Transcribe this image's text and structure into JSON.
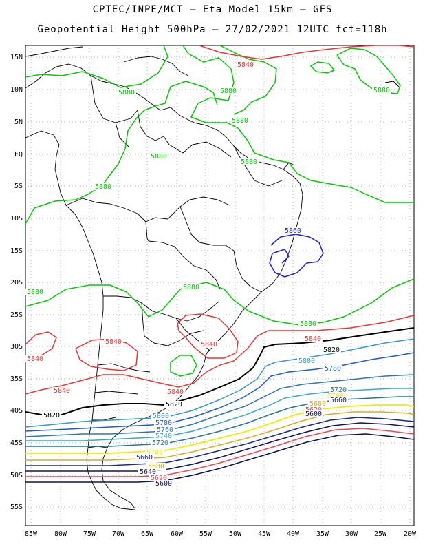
{
  "header": {
    "line1": "CPTEC/INPE/MCT –  Eta Model 15km – GFS",
    "line2": "Geopotential Height 500hPa – 27/02/2021 12UTC fct=118h"
  },
  "axes": {
    "lat_labels": [
      "15N",
      "10N",
      "5N",
      "EQ",
      "5S",
      "10S",
      "15S",
      "20S",
      "25S",
      "30S",
      "35S",
      "40S",
      "45S",
      "50S",
      "55S"
    ],
    "lon_labels": [
      "85W",
      "80W",
      "75W",
      "70W",
      "65W",
      "60W",
      "55W",
      "50W",
      "45W",
      "40W",
      "35W",
      "30W",
      "25W",
      "20W"
    ],
    "lat_range": [
      -58,
      17
    ],
    "lon_range": [
      -86,
      -20
    ]
  },
  "contours": {
    "levels": [
      {
        "value": "5880",
        "color": "#00cc00"
      },
      {
        "value": "5860",
        "color": "#1a1aee"
      },
      {
        "value": "5840",
        "color": "#ee3333"
      },
      {
        "value": "5820",
        "color": "#000000"
      },
      {
        "value": "5800",
        "color": "#3399cc"
      },
      {
        "value": "5780",
        "color": "#1a5ad6"
      },
      {
        "value": "5760",
        "color": "#2a76b8"
      },
      {
        "value": "5740",
        "color": "#33aacc"
      },
      {
        "value": "5720",
        "color": "#227799"
      },
      {
        "value": "5700",
        "color": "#eeee00"
      },
      {
        "value": "5680",
        "color": "#ddaa22"
      },
      {
        "value": "5660",
        "color": "#1a2a8a"
      },
      {
        "value": "5640",
        "color": "#111166"
      },
      {
        "value": "5620",
        "color": "#ee4455"
      },
      {
        "value": "5600",
        "color": "#101050"
      }
    ],
    "labels": [
      {
        "text": "5880",
        "color": "#00cc00"
      },
      {
        "text": "5880",
        "color": "#00cc00"
      },
      {
        "text": "5880",
        "color": "#00cc00"
      },
      {
        "text": "5880",
        "color": "#00cc00"
      },
      {
        "text": "5880",
        "color": "#00cc00"
      },
      {
        "text": "5880",
        "color": "#00cc00"
      },
      {
        "text": "5880",
        "color": "#00cc00"
      },
      {
        "text": "5880",
        "color": "#00cc00"
      },
      {
        "text": "5880",
        "color": "#00cc00"
      },
      {
        "text": "5880",
        "color": "#00cc00"
      },
      {
        "text": "5860",
        "color": "#1a1aee"
      },
      {
        "text": "5840",
        "color": "#ee3333"
      },
      {
        "text": "5840",
        "color": "#ee3333"
      },
      {
        "text": "5840",
        "color": "#ee3333"
      },
      {
        "text": "5840",
        "color": "#ee3333"
      },
      {
        "text": "5840",
        "color": "#ee3333"
      },
      {
        "text": "5840",
        "color": "#ee3333"
      },
      {
        "text": "5840",
        "color": "#ee3333"
      },
      {
        "text": "5820",
        "color": "#000000"
      },
      {
        "text": "5820",
        "color": "#000000"
      },
      {
        "text": "5820",
        "color": "#000000"
      },
      {
        "text": "5800",
        "color": "#3399cc"
      },
      {
        "text": "5800",
        "color": "#3399cc"
      },
      {
        "text": "5780",
        "color": "#1a5ad6"
      },
      {
        "text": "5780",
        "color": "#1a5ad6"
      },
      {
        "text": "5760",
        "color": "#2a76b8"
      },
      {
        "text": "5740",
        "color": "#33aacc"
      },
      {
        "text": "5720",
        "color": "#227799"
      },
      {
        "text": "5720",
        "color": "#227799"
      },
      {
        "text": "5700",
        "color": "#eeee00"
      },
      {
        "text": "5700",
        "color": "#eeee00"
      },
      {
        "text": "5680",
        "color": "#ddaa22"
      },
      {
        "text": "5680",
        "color": "#ddaa22"
      },
      {
        "text": "5660",
        "color": "#1a2a8a"
      },
      {
        "text": "5660",
        "color": "#1a2a8a"
      },
      {
        "text": "5640",
        "color": "#111166"
      },
      {
        "text": "5620",
        "color": "#ee4455"
      },
      {
        "text": "5620",
        "color": "#ee4455"
      },
      {
        "text": "5600",
        "color": "#101050"
      },
      {
        "text": "5600",
        "color": "#101050"
      }
    ]
  }
}
